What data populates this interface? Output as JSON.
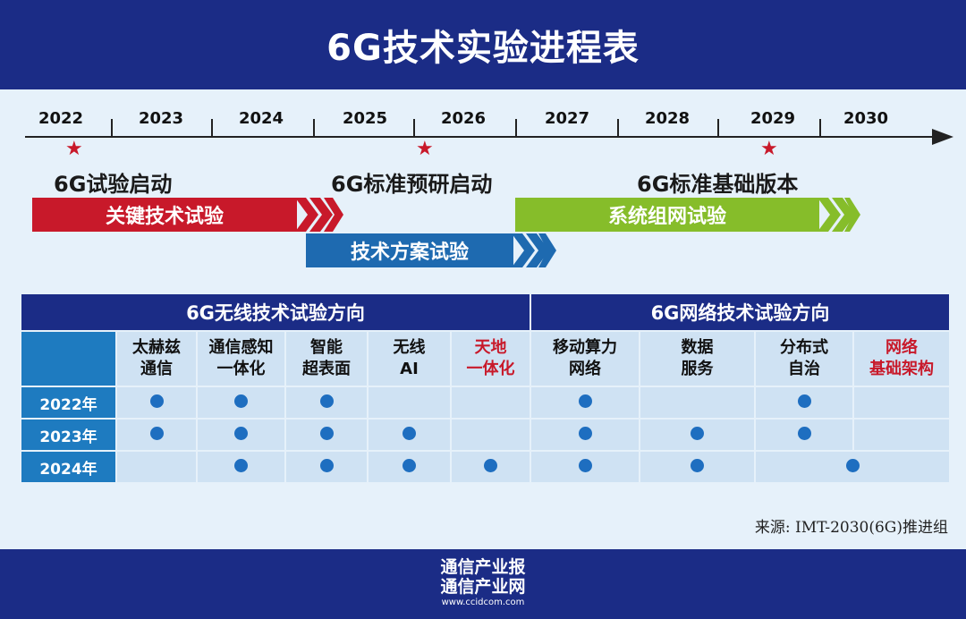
{
  "title": "6G技术实验进程表",
  "years": [
    "2022",
    "2023",
    "2024",
    "2025",
    "2026",
    "2027",
    "2028",
    "2029",
    "2030"
  ],
  "milestones": [
    {
      "label": "6G试验启动"
    },
    {
      "label": "6G标准预研启动"
    },
    {
      "label": "6G标准基础版本"
    }
  ],
  "phases": [
    {
      "label": "关键技术试验",
      "color": "#c8192a"
    },
    {
      "label": "技术方案试验",
      "color": "#1e6ab0"
    },
    {
      "label": "系统组网试验",
      "color": "#86bd2a"
    }
  ],
  "matrix": {
    "groups": [
      "6G无线技术试验方向",
      "6G网络技术试验方向"
    ],
    "columns": [
      {
        "line1": "太赫兹",
        "line2": "通信",
        "highlight": false
      },
      {
        "line1": "通信感知",
        "line2": "一体化",
        "highlight": false
      },
      {
        "line1": "智能",
        "line2": "超表面",
        "highlight": false
      },
      {
        "line1": "无线",
        "line2": "AI",
        "highlight": false
      },
      {
        "line1": "天地",
        "line2": "一体化",
        "highlight": true
      },
      {
        "line1": "移动算力",
        "line2": "网络",
        "highlight": false
      },
      {
        "line1": "数据",
        "line2": "服务",
        "highlight": false
      },
      {
        "line1": "分布式",
        "line2": "自治",
        "highlight": false
      },
      {
        "line1": "网络",
        "line2": "基础架构",
        "highlight": true
      }
    ],
    "rows": [
      {
        "year": "2022年",
        "marks": [
          1,
          1,
          1,
          0,
          0,
          1,
          0,
          1,
          0
        ]
      },
      {
        "year": "2023年",
        "marks": [
          1,
          1,
          1,
          1,
          0,
          1,
          1,
          1,
          0
        ]
      },
      {
        "year": "2024年",
        "marks": [
          0,
          1,
          1,
          1,
          1,
          1,
          1,
          0,
          0
        ],
        "merged_dot": "分布式自治+网络基础架构"
      }
    ]
  },
  "source": "来源: IMT-2030(6G)推进组",
  "footer": {
    "line1": "通信产业报",
    "line2": "通信产业网",
    "url": "www.ccidcom.com"
  }
}
